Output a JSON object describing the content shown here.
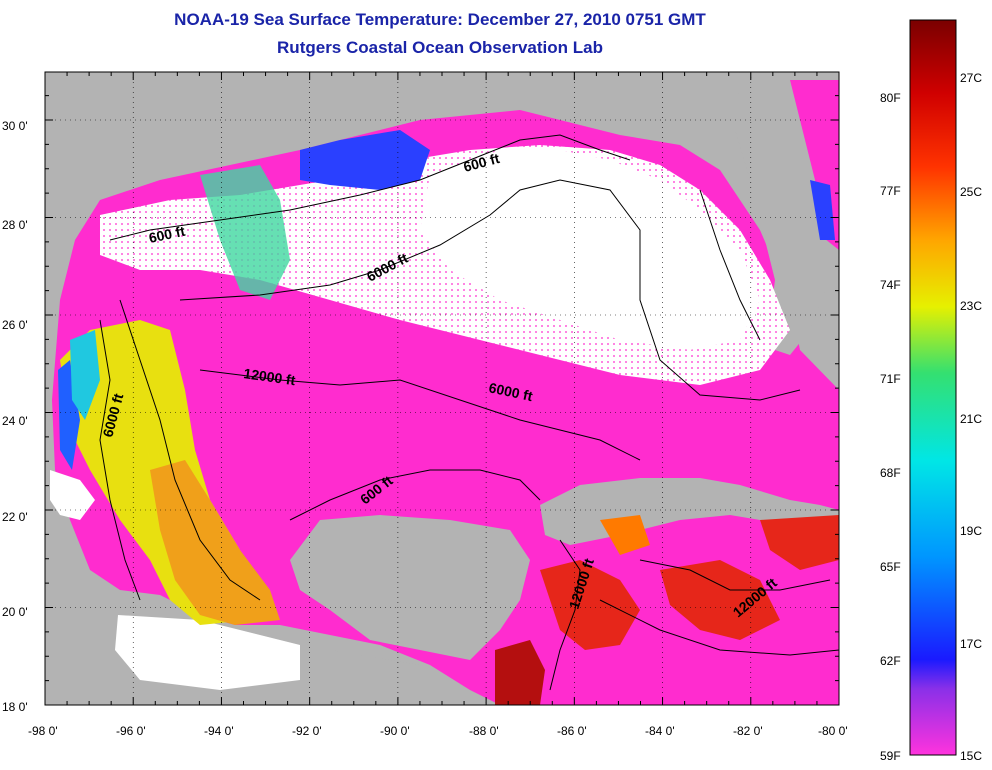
{
  "header": {
    "title": "NOAA-19 Sea Surface Temperature:  December 27, 2010 0751 GMT",
    "subtitle": "Rutgers Coastal Ocean Observation Lab"
  },
  "map": {
    "region": "Gulf of Mexico",
    "lon_range": [
      -98,
      -80
    ],
    "lat_range": [
      18,
      31
    ],
    "x_ticks": [
      "-98 0'",
      "-96 0'",
      "-94 0'",
      "-92 0'",
      "-90 0'",
      "-88 0'",
      "-86 0'",
      "-84 0'",
      "-82 0'",
      "-80 0'"
    ],
    "y_ticks": [
      "30 0'",
      "28 0'",
      "26 0'",
      "24 0'",
      "22 0'",
      "20 0'",
      "18 0'"
    ],
    "contour_labels": [
      {
        "id": "c600a",
        "text": "600 ft"
      },
      {
        "id": "c600b",
        "text": "600 ft"
      },
      {
        "id": "c600c",
        "text": "600 ft"
      },
      {
        "id": "c6000a",
        "text": "6000 ft"
      },
      {
        "id": "c6000b",
        "text": "6000 ft"
      },
      {
        "id": "c6000c",
        "text": "6000 ft"
      },
      {
        "id": "c12000a",
        "text": "12000 ft"
      },
      {
        "id": "c12000b",
        "text": "12000 ft"
      },
      {
        "id": "c12000c",
        "text": "12000 ft"
      }
    ],
    "colors": {
      "land": "#b3b3b3",
      "cloud": "#ffffff",
      "cold": "#ff2ccf",
      "warm": "#e6261a"
    }
  },
  "colorbar": {
    "fahrenheit_labels": [
      "80F",
      "77F",
      "74F",
      "71F",
      "68F",
      "65F",
      "62F",
      "59F"
    ],
    "celsius_labels": [
      "27C",
      "25C",
      "23C",
      "21C",
      "19C",
      "17C",
      "15C"
    ],
    "range_c": [
      15,
      29
    ]
  }
}
